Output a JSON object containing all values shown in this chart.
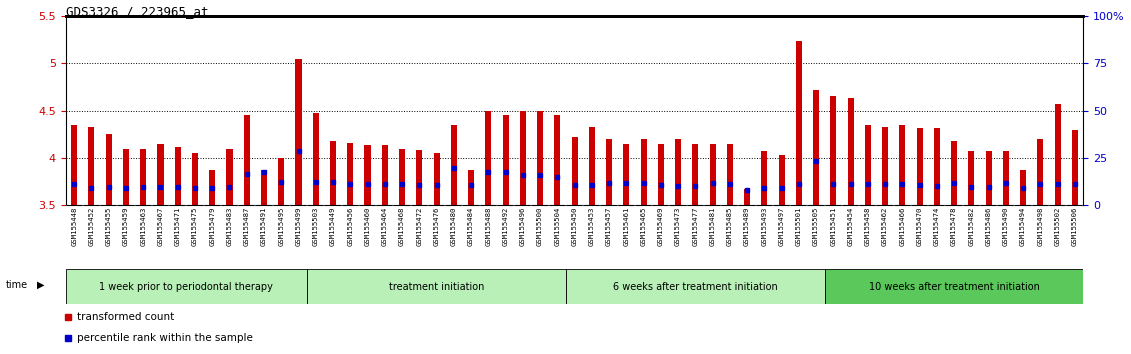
{
  "title": "GDS3326 / 223965_at",
  "ylim": [
    3.5,
    5.5
  ],
  "yticks": [
    3.5,
    4.0,
    4.5,
    5.0,
    5.5
  ],
  "ytick_labels": [
    "3.5",
    "4",
    "4.5",
    "5",
    "5.5"
  ],
  "right_yticks": [
    0,
    25,
    50,
    75,
    100
  ],
  "right_ytick_labels": [
    "0",
    "25",
    "50",
    "75",
    "100%"
  ],
  "dotted_lines": [
    4.0,
    4.5,
    5.0
  ],
  "baseline": 3.5,
  "samples": [
    "GSM155448",
    "GSM155452",
    "GSM155455",
    "GSM155459",
    "GSM155463",
    "GSM155467",
    "GSM155471",
    "GSM155475",
    "GSM155479",
    "GSM155483",
    "GSM155487",
    "GSM155491",
    "GSM155495",
    "GSM155499",
    "GSM155503",
    "GSM155449",
    "GSM155456",
    "GSM155460",
    "GSM155464",
    "GSM155468",
    "GSM155472",
    "GSM155476",
    "GSM155480",
    "GSM155484",
    "GSM155488",
    "GSM155492",
    "GSM155496",
    "GSM155500",
    "GSM155504",
    "GSM155450",
    "GSM155453",
    "GSM155457",
    "GSM155461",
    "GSM155465",
    "GSM155469",
    "GSM155473",
    "GSM155477",
    "GSM155481",
    "GSM155485",
    "GSM155489",
    "GSM155493",
    "GSM155497",
    "GSM155501",
    "GSM155505",
    "GSM155451",
    "GSM155454",
    "GSM155458",
    "GSM155462",
    "GSM155466",
    "GSM155470",
    "GSM155474",
    "GSM155478",
    "GSM155482",
    "GSM155486",
    "GSM155490",
    "GSM155494",
    "GSM155498",
    "GSM155502",
    "GSM155506"
  ],
  "red_values": [
    4.35,
    4.33,
    4.25,
    4.1,
    4.1,
    4.15,
    4.12,
    4.05,
    3.87,
    4.1,
    4.45,
    3.87,
    4.0,
    5.05,
    4.47,
    4.18,
    4.16,
    4.14,
    4.14,
    4.1,
    4.08,
    4.05,
    4.35,
    3.87,
    4.5,
    4.45,
    4.5,
    4.5,
    4.45,
    4.22,
    4.33,
    4.2,
    4.15,
    4.2,
    4.15,
    4.2,
    4.15,
    4.15,
    4.15,
    3.67,
    4.07,
    4.03,
    5.24,
    4.72,
    4.65,
    4.63,
    4.35,
    4.33,
    4.35,
    4.32,
    4.32,
    4.18,
    4.07,
    4.07,
    4.07,
    3.87,
    4.2,
    4.57,
    4.3
  ],
  "blue_values": [
    3.73,
    3.68,
    3.69,
    3.68,
    3.69,
    3.69,
    3.69,
    3.68,
    3.68,
    3.69,
    3.83,
    3.85,
    3.75,
    4.07,
    3.75,
    3.75,
    3.72,
    3.72,
    3.72,
    3.72,
    3.71,
    3.71,
    3.89,
    3.71,
    3.85,
    3.85,
    3.82,
    3.82,
    3.8,
    3.71,
    3.71,
    3.74,
    3.74,
    3.74,
    3.71,
    3.7,
    3.7,
    3.74,
    3.73,
    3.66,
    3.68,
    3.68,
    3.72,
    3.97,
    3.72,
    3.72,
    3.72,
    3.72,
    3.72,
    3.71,
    3.7,
    3.74,
    3.69,
    3.69,
    3.74,
    3.68,
    3.72,
    3.72,
    3.72
  ],
  "groups": [
    {
      "label": "1 week prior to periodontal therapy",
      "start": 0,
      "end": 14,
      "light": true
    },
    {
      "label": "treatment initiation",
      "start": 14,
      "end": 29,
      "light": true
    },
    {
      "label": "6 weeks after treatment initiation",
      "start": 29,
      "end": 44,
      "light": true
    },
    {
      "label": "10 weeks after treatment initiation",
      "start": 44,
      "end": 59,
      "light": false
    }
  ],
  "group_color_light": "#b8f0b8",
  "group_color_dark": "#5ac85a",
  "bar_color": "#cc0000",
  "blue_color": "#0000cc",
  "left_tick_color": "#cc0000",
  "right_tick_color": "#0000cc",
  "xtick_bg_color": "#c8c8c8"
}
